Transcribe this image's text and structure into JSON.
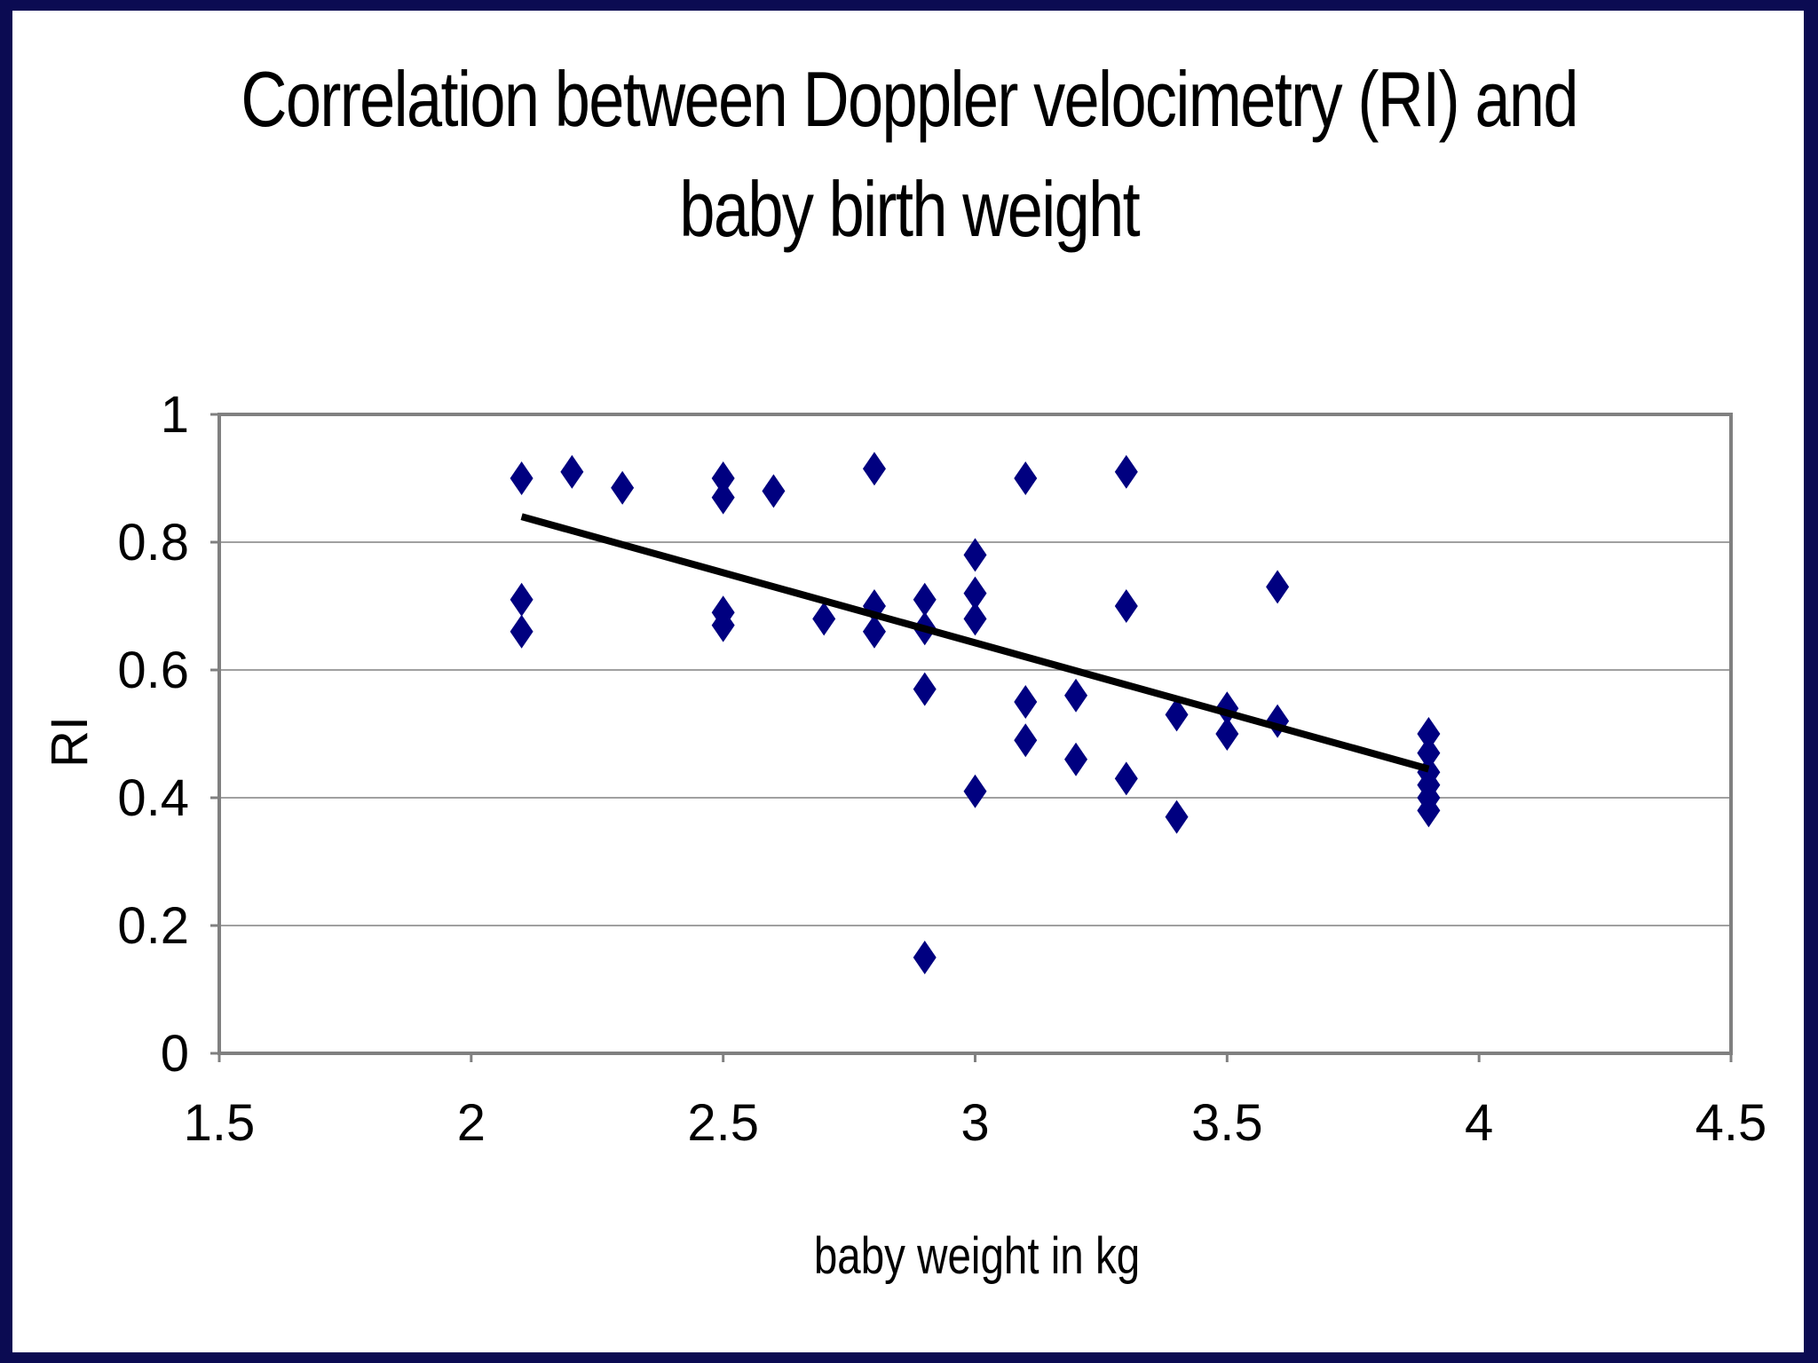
{
  "chart_data": {
    "type": "scatter",
    "title_lines": [
      "Correlation between Doppler velocimetry (RI) and",
      "baby birth weight"
    ],
    "xlabel": "baby weight in kg",
    "ylabel": "RI",
    "xlim": [
      1.5,
      4.5
    ],
    "ylim": [
      0,
      1
    ],
    "xticks": [
      "1.5",
      "2",
      "2.5",
      "3",
      "3.5",
      "4",
      "4.5"
    ],
    "yticks": [
      "0",
      "0.2",
      "0.4",
      "0.6",
      "0.8",
      "1"
    ],
    "grid": "horizontal",
    "marker": "diamond",
    "colors": {
      "marker": "#000080",
      "trendline": "#000000",
      "gridline": "#808080",
      "plot_border": "#808080"
    },
    "series": [
      {
        "name": "RI",
        "points": [
          [
            2.1,
            0.9
          ],
          [
            2.1,
            0.71
          ],
          [
            2.1,
            0.66
          ],
          [
            2.2,
            0.91
          ],
          [
            2.3,
            0.885
          ],
          [
            2.5,
            0.9
          ],
          [
            2.5,
            0.87
          ],
          [
            2.5,
            0.69
          ],
          [
            2.5,
            0.67
          ],
          [
            2.6,
            0.88
          ],
          [
            2.7,
            0.68
          ],
          [
            2.8,
            0.915
          ],
          [
            2.8,
            0.7
          ],
          [
            2.8,
            0.66
          ],
          [
            2.9,
            0.71
          ],
          [
            2.9,
            0.665
          ],
          [
            2.9,
            0.57
          ],
          [
            2.9,
            0.15
          ],
          [
            3.0,
            0.78
          ],
          [
            3.0,
            0.72
          ],
          [
            3.0,
            0.68
          ],
          [
            3.0,
            0.41
          ],
          [
            3.1,
            0.9
          ],
          [
            3.1,
            0.55
          ],
          [
            3.1,
            0.49
          ],
          [
            3.2,
            0.56
          ],
          [
            3.2,
            0.46
          ],
          [
            3.3,
            0.91
          ],
          [
            3.3,
            0.7
          ],
          [
            3.3,
            0.43
          ],
          [
            3.4,
            0.53
          ],
          [
            3.4,
            0.37
          ],
          [
            3.5,
            0.54
          ],
          [
            3.5,
            0.5
          ],
          [
            3.6,
            0.73
          ],
          [
            3.6,
            0.52
          ],
          [
            3.9,
            0.5
          ],
          [
            3.9,
            0.47
          ],
          [
            3.9,
            0.44
          ],
          [
            3.9,
            0.42
          ],
          [
            3.9,
            0.4
          ],
          [
            3.9,
            0.38
          ]
        ]
      }
    ],
    "trendline": {
      "type": "linear",
      "x": [
        2.1,
        3.9
      ],
      "y": [
        0.84,
        0.445
      ]
    }
  }
}
